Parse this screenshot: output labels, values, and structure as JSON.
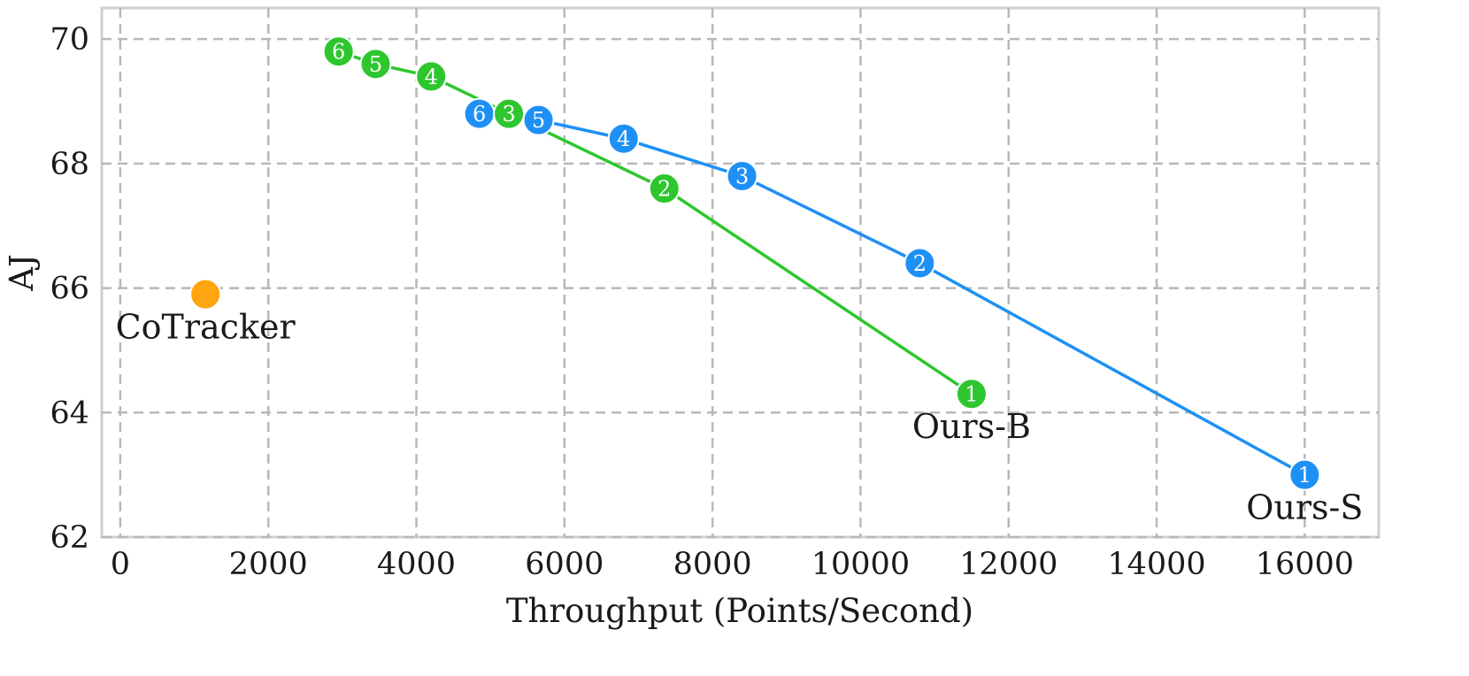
{
  "chart_data": {
    "type": "scatter",
    "title": "",
    "xlabel": "Throughput (Points/Second)",
    "ylabel": "AJ",
    "xlim": [
      -250,
      17000
    ],
    "ylim": [
      62,
      70.5
    ],
    "x_ticks": [
      0,
      2000,
      4000,
      6000,
      8000,
      10000,
      12000,
      14000,
      16000
    ],
    "y_ticks": [
      62,
      64,
      66,
      68,
      70
    ],
    "grid": true,
    "series": [
      {
        "name": "Ours-S",
        "color": "#1E90F5",
        "mode": "line+markers",
        "points": [
          {
            "x": 16000,
            "y": 63.0,
            "label": "1"
          },
          {
            "x": 10800,
            "y": 66.4,
            "label": "2"
          },
          {
            "x": 8400,
            "y": 67.8,
            "label": "3"
          },
          {
            "x": 6800,
            "y": 68.4,
            "label": "4"
          },
          {
            "x": 5650,
            "y": 68.7,
            "label": "5"
          },
          {
            "x": 4850,
            "y": 68.8,
            "label": "6"
          }
        ]
      },
      {
        "name": "Ours-B",
        "color": "#2EC62E",
        "mode": "line+markers",
        "points": [
          {
            "x": 11500,
            "y": 64.3,
            "label": "1"
          },
          {
            "x": 7350,
            "y": 67.6,
            "label": "2"
          },
          {
            "x": 5250,
            "y": 68.8,
            "label": "3"
          },
          {
            "x": 4200,
            "y": 69.4,
            "label": "4"
          },
          {
            "x": 3450,
            "y": 69.6,
            "label": "5"
          },
          {
            "x": 2950,
            "y": 69.8,
            "label": "6"
          }
        ]
      },
      {
        "name": "CoTracker",
        "color": "#FFA50F",
        "mode": "markers",
        "points": [
          {
            "x": 1150,
            "y": 65.9,
            "label": ""
          }
        ]
      }
    ],
    "annotations": [
      {
        "text": "CoTracker",
        "x": 1150,
        "y": 65.9,
        "position": "below"
      },
      {
        "text": "Ours-B",
        "x": 11500,
        "y": 64.3,
        "position": "below"
      },
      {
        "text": "Ours-S",
        "x": 16000,
        "y": 63.0,
        "position": "below"
      }
    ]
  }
}
